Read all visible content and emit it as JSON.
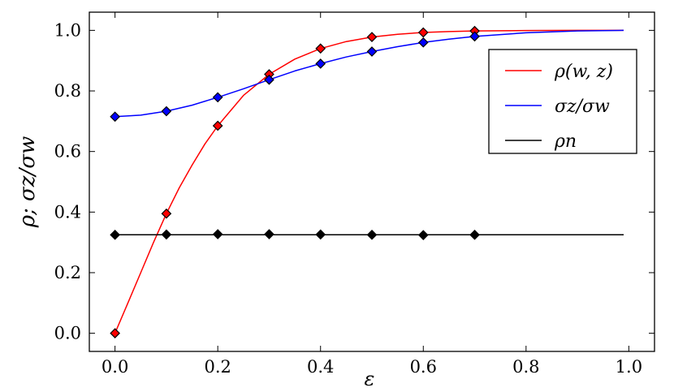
{
  "chart_data": {
    "type": "line",
    "xlabel": "ε",
    "ylabel": "ρ; σz/σw",
    "xlim": [
      -0.05,
      1.05
    ],
    "ylim": [
      -0.06,
      1.06
    ],
    "x_ticks": [
      "0.0",
      "0.2",
      "0.4",
      "0.6",
      "0.8",
      "1.0"
    ],
    "x_tick_values": [
      0.0,
      0.2,
      0.4,
      0.6,
      0.8,
      1.0
    ],
    "y_ticks": [
      "0.0",
      "0.2",
      "0.4",
      "0.6",
      "0.8",
      "1.0"
    ],
    "y_tick_values": [
      0.0,
      0.2,
      0.4,
      0.6,
      0.8,
      1.0
    ],
    "grid": false,
    "legend_position": "upper-right",
    "series": [
      {
        "name": "ρ(w, z)",
        "color": "#ff0000",
        "marker_fill": "#ff0000",
        "line_x": [
          0.0,
          0.025,
          0.05,
          0.075,
          0.1,
          0.125,
          0.15,
          0.175,
          0.2,
          0.25,
          0.3,
          0.35,
          0.4,
          0.45,
          0.5,
          0.55,
          0.6,
          0.65,
          0.7,
          0.8,
          0.9,
          0.99
        ],
        "line_y": [
          0.0,
          0.1,
          0.2,
          0.3,
          0.395,
          0.48,
          0.555,
          0.625,
          0.685,
          0.785,
          0.855,
          0.905,
          0.94,
          0.963,
          0.978,
          0.987,
          0.993,
          0.996,
          0.998,
          0.9995,
          1.0,
          1.0
        ],
        "points_x": [
          0.0,
          0.1,
          0.2,
          0.3,
          0.4,
          0.5,
          0.6,
          0.7
        ],
        "points_y": [
          0.0,
          0.395,
          0.685,
          0.855,
          0.94,
          0.978,
          0.993,
          0.998
        ]
      },
      {
        "name": "σz/σw",
        "color": "#0000ff",
        "marker_fill": "#0000ff",
        "line_x": [
          0.0,
          0.05,
          0.1,
          0.15,
          0.2,
          0.25,
          0.3,
          0.35,
          0.4,
          0.45,
          0.5,
          0.55,
          0.6,
          0.65,
          0.7,
          0.8,
          0.9,
          0.99
        ],
        "line_y": [
          0.715,
          0.72,
          0.733,
          0.753,
          0.779,
          0.807,
          0.837,
          0.866,
          0.89,
          0.912,
          0.93,
          0.946,
          0.96,
          0.971,
          0.98,
          0.992,
          0.998,
          1.0
        ],
        "points_x": [
          0.0,
          0.1,
          0.2,
          0.3,
          0.4,
          0.5,
          0.6,
          0.7
        ],
        "points_y": [
          0.715,
          0.733,
          0.779,
          0.837,
          0.89,
          0.93,
          0.96,
          0.98
        ]
      },
      {
        "name": "ρn",
        "color": "#000000",
        "marker_fill": "#000000",
        "line_x": [
          0.0,
          0.99
        ],
        "line_y": [
          0.325,
          0.325
        ],
        "points_x": [
          0.0,
          0.1,
          0.2,
          0.3,
          0.4,
          0.5,
          0.6,
          0.7
        ],
        "points_y": [
          0.325,
          0.326,
          0.327,
          0.327,
          0.326,
          0.325,
          0.324,
          0.325
        ]
      }
    ]
  }
}
